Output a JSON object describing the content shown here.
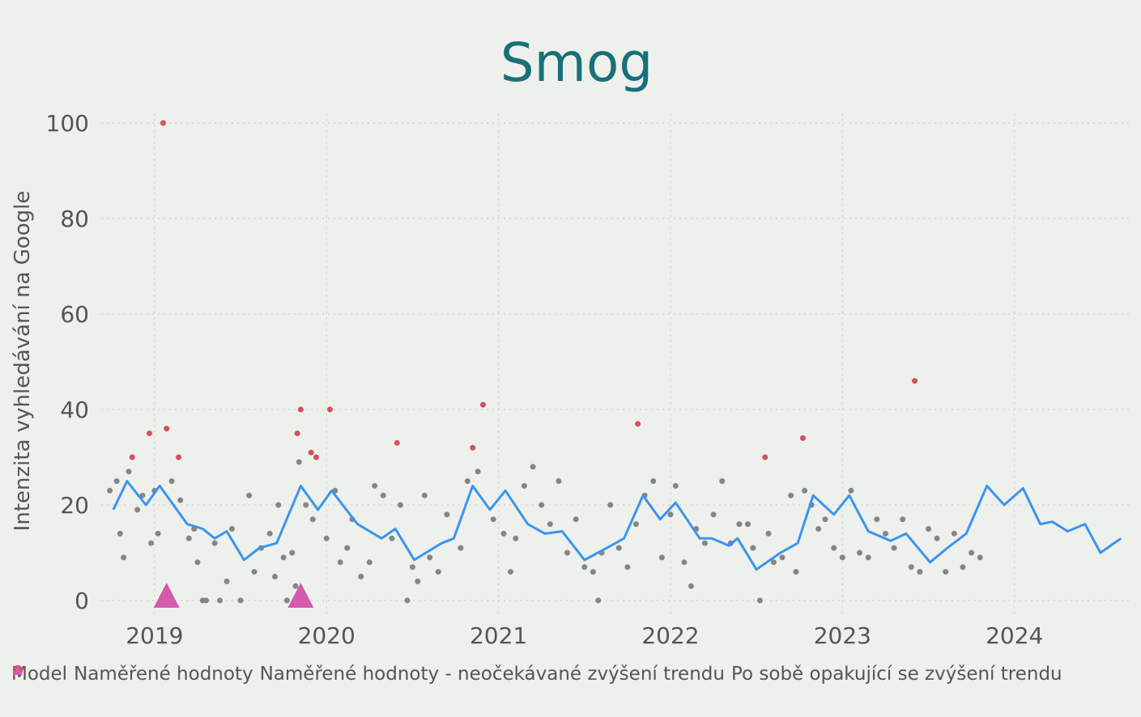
{
  "chart_data": {
    "type": "line",
    "title": "Smog",
    "y_label": "Intenzita vyhledávání na Google",
    "xlim": [
      2018.69,
      2024.67
    ],
    "xticks": [
      2019,
      2020,
      2021,
      2022,
      2023,
      2024
    ],
    "ylim": [
      -3,
      102
    ],
    "yticks": [
      0,
      20,
      40,
      60,
      80,
      100
    ],
    "grid": true,
    "legend": "bottom",
    "series": [
      {
        "name": "Model",
        "color": "#3a95ef",
        "marker": "line",
        "x": [
          2018.76,
          2018.84,
          2018.95,
          2019.03,
          2019.19,
          2019.28,
          2019.35,
          2019.42,
          2019.52,
          2019.61,
          2019.71,
          2019.85,
          2019.95,
          2020.03,
          2020.18,
          2020.32,
          2020.4,
          2020.51,
          2020.67,
          2020.74,
          2020.85,
          2020.95,
          2021.04,
          2021.17,
          2021.27,
          2021.37,
          2021.5,
          2021.63,
          2021.73,
          2021.84,
          2021.94,
          2022.03,
          2022.17,
          2022.24,
          2022.34,
          2022.39,
          2022.5,
          2022.64,
          2022.74,
          2022.83,
          2022.95,
          2023.04,
          2023.15,
          2023.28,
          2023.37,
          2023.51,
          2023.61,
          2023.72,
          2023.84,
          2023.94,
          2024.05,
          2024.15,
          2024.22,
          2024.31,
          2024.41,
          2024.5,
          2024.62
        ],
        "y": [
          19,
          25,
          20,
          24,
          16,
          15,
          13,
          14.5,
          8.5,
          11,
          12,
          24,
          19,
          23,
          16,
          13,
          15,
          8.5,
          12,
          13,
          24,
          19,
          23,
          16,
          14,
          14.5,
          8.5,
          11,
          13,
          22,
          17,
          20.5,
          13,
          13,
          11.5,
          13,
          6.5,
          10,
          12,
          22,
          18,
          22,
          14.5,
          12.5,
          14,
          8,
          11,
          14,
          24,
          20,
          23.5,
          16,
          16.5,
          14.5,
          16,
          10,
          13
        ]
      },
      {
        "name": "Naměřené hodnoty",
        "color": "#858585",
        "marker": "circle",
        "x": [
          2018.74,
          2018.78,
          2018.8,
          2018.82,
          2018.85,
          2018.9,
          2018.93,
          2018.98,
          2019.0,
          2019.02,
          2019.1,
          2019.15,
          2019.2,
          2019.23,
          2019.25,
          2019.28,
          2019.3,
          2019.35,
          2019.38,
          2019.42,
          2019.45,
          2019.5,
          2019.55,
          2019.58,
          2019.62,
          2019.67,
          2019.7,
          2019.72,
          2019.75,
          2019.77,
          2019.8,
          2019.82,
          2019.84,
          2019.88,
          2019.92,
          2020.0,
          2020.05,
          2020.08,
          2020.12,
          2020.15,
          2020.2,
          2020.25,
          2020.28,
          2020.33,
          2020.38,
          2020.43,
          2020.47,
          2020.5,
          2020.53,
          2020.57,
          2020.6,
          2020.65,
          2020.7,
          2020.78,
          2020.82,
          2020.88,
          2020.97,
          2021.03,
          2021.07,
          2021.1,
          2021.15,
          2021.2,
          2021.25,
          2021.3,
          2021.35,
          2021.4,
          2021.45,
          2021.5,
          2021.55,
          2021.58,
          2021.6,
          2021.65,
          2021.7,
          2021.75,
          2021.8,
          2021.85,
          2021.9,
          2021.95,
          2022.0,
          2022.03,
          2022.08,
          2022.12,
          2022.15,
          2022.2,
          2022.25,
          2022.3,
          2022.35,
          2022.4,
          2022.45,
          2022.48,
          2022.52,
          2022.57,
          2022.6,
          2022.65,
          2022.7,
          2022.73,
          2022.78,
          2022.82,
          2022.86,
          2022.9,
          2022.95,
          2023.0,
          2023.05,
          2023.1,
          2023.15,
          2023.2,
          2023.25,
          2023.3,
          2023.35,
          2023.4,
          2023.45,
          2023.5,
          2023.55,
          2023.6,
          2023.65,
          2023.7,
          2023.75,
          2023.8
        ],
        "y": [
          23,
          25,
          14,
          9,
          27,
          19,
          22,
          12,
          23,
          14,
          25,
          21,
          13,
          15,
          8,
          0,
          0,
          12,
          0,
          4,
          15,
          0,
          22,
          6,
          11,
          14,
          5,
          20,
          9,
          0,
          10,
          3,
          29,
          20,
          17,
          13,
          23,
          8,
          11,
          17,
          5,
          8,
          24,
          22,
          13,
          20,
          0,
          7,
          4,
          22,
          9,
          6,
          18,
          11,
          25,
          27,
          17,
          14,
          6,
          13,
          24,
          28,
          20,
          16,
          25,
          10,
          17,
          7,
          6,
          0,
          10,
          20,
          11,
          7,
          16,
          22,
          25,
          9,
          18,
          24,
          8,
          3,
          15,
          12,
          18,
          25,
          12,
          16,
          16,
          11,
          0,
          14,
          8,
          9,
          22,
          6,
          23,
          20,
          15,
          17,
          11,
          9,
          23,
          10,
          9,
          17,
          14,
          11,
          17,
          7,
          6,
          15,
          13,
          6,
          14,
          7,
          10,
          9
        ]
      },
      {
        "name": "Naměřené hodnoty - neočekávané zvýšení trendu",
        "color": "#d4505a",
        "marker": "circle",
        "x": [
          2018.87,
          2018.97,
          2019.05,
          2019.07,
          2019.14,
          2019.83,
          2019.85,
          2019.91,
          2019.94,
          2020.02,
          2020.41,
          2020.85,
          2020.91,
          2021.81,
          2022.55,
          2022.77,
          2023.42
        ],
        "y": [
          30,
          35,
          100,
          36,
          30,
          35,
          40,
          31,
          30,
          40,
          33,
          32,
          41,
          37,
          30,
          34,
          46
        ]
      },
      {
        "name": "Po sobě opakující se zvýšení trendu",
        "color": "#d45aad",
        "marker": "triangle",
        "x": [
          2019.07,
          2019.85
        ],
        "y": [
          0,
          0
        ]
      }
    ]
  }
}
